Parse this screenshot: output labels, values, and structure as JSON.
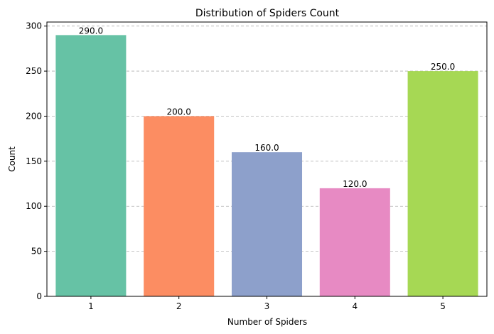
{
  "chart_data": {
    "type": "bar",
    "title": "Distribution of Spiders Count",
    "xlabel": "Number of Spiders",
    "ylabel": "Count",
    "categories": [
      "1",
      "2",
      "3",
      "4",
      "5"
    ],
    "values": [
      290,
      200,
      160,
      120,
      250
    ],
    "value_labels": [
      "290.0",
      "200.0",
      "160.0",
      "120.0",
      "250.0"
    ],
    "colors": [
      "#66c2a5",
      "#fc8d62",
      "#8da0cb",
      "#e78ac3",
      "#a6d854"
    ],
    "ylim": [
      0,
      304.5
    ],
    "yticks": [
      0,
      50,
      100,
      150,
      200,
      250,
      300
    ],
    "grid": "y-dashed",
    "legend": "none"
  }
}
